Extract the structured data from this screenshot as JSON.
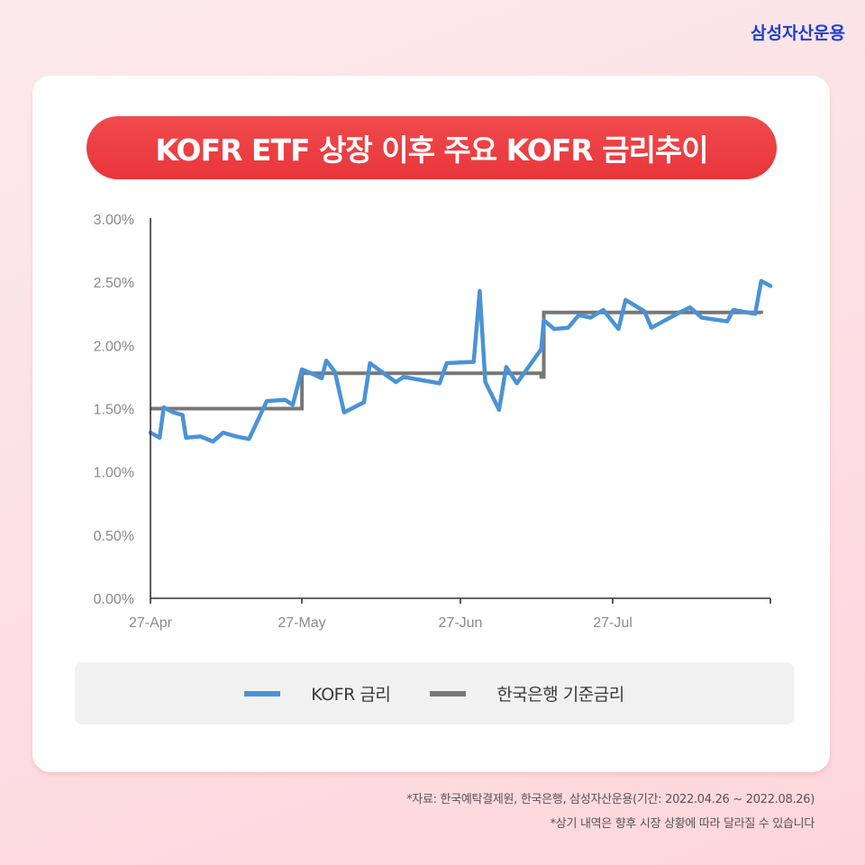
{
  "brand": {
    "name": "삼성자산운용",
    "color": "#1a3fd6"
  },
  "title": "KOFR ETF 상장 이후 주요 KOFR 금리추이",
  "colors": {
    "title_bg": "#ec3f43",
    "kofr_line": "#4a93d6",
    "bok_line": "#777777",
    "axis": "#333333"
  },
  "legend": [
    {
      "label": "KOFR 금리",
      "color": "#4a93d6"
    },
    {
      "label": "한국은행 기준금리",
      "color": "#777777"
    }
  ],
  "footnotes": [
    "*자료: 한국예탁결제원, 한국은행, 삼성자산운용(기간: 2022.04.26 ~ 2022.08.26)",
    "*상기 내역은 향후 시장 상황에 따라 달라질 수 있습니다"
  ],
  "chart_data": {
    "type": "line",
    "title": "KOFR ETF 상장 이후 주요 KOFR 금리추이",
    "xlabel": "",
    "ylabel": "",
    "ylim": [
      0,
      3.0
    ],
    "yticks": [
      "0.00%",
      "0.50%",
      "1.00%",
      "1.50%",
      "2.00%",
      "2.50%",
      "3.00%"
    ],
    "xticks": [
      "27-Apr",
      "27-May",
      "27-Jun",
      "27-Jul"
    ],
    "grid": false,
    "legend_position": "bottom",
    "x_range_days": [
      0,
      122
    ],
    "series": [
      {
        "name": "KOFR 금리",
        "color": "#4a93d6",
        "points": [
          [
            0.0,
            1.31
          ],
          [
            1.8,
            1.27
          ],
          [
            2.6,
            1.51
          ],
          [
            4.5,
            1.47
          ],
          [
            6.3,
            1.45
          ],
          [
            7.0,
            1.27
          ],
          [
            9.8,
            1.28
          ],
          [
            12.3,
            1.24
          ],
          [
            14.3,
            1.31
          ],
          [
            16.9,
            1.28
          ],
          [
            19.4,
            1.26
          ],
          [
            22.9,
            1.56
          ],
          [
            26.5,
            1.57
          ],
          [
            28.0,
            1.53
          ],
          [
            29.8,
            1.81
          ],
          [
            31.6,
            1.78
          ],
          [
            33.7,
            1.74
          ],
          [
            34.6,
            1.88
          ],
          [
            36.3,
            1.79
          ],
          [
            38.1,
            1.47
          ],
          [
            42.0,
            1.55
          ],
          [
            43.2,
            1.86
          ],
          [
            46.2,
            1.77
          ],
          [
            48.3,
            1.71
          ],
          [
            49.8,
            1.75
          ],
          [
            56.9,
            1.7
          ],
          [
            58.3,
            1.86
          ],
          [
            63.6,
            1.87
          ],
          [
            64.8,
            2.43
          ],
          [
            65.9,
            1.71
          ],
          [
            68.6,
            1.49
          ],
          [
            70.0,
            1.83
          ],
          [
            72.1,
            1.7
          ],
          [
            76.9,
            1.97
          ],
          [
            77.4,
            2.2
          ],
          [
            79.4,
            2.13
          ],
          [
            82.2,
            2.14
          ],
          [
            84.3,
            2.24
          ],
          [
            86.6,
            2.22
          ],
          [
            89.1,
            2.28
          ],
          [
            92.1,
            2.13
          ],
          [
            93.5,
            2.36
          ],
          [
            97.2,
            2.27
          ],
          [
            98.6,
            2.14
          ],
          [
            104.6,
            2.27
          ],
          [
            106.2,
            2.3
          ],
          [
            108.5,
            2.22
          ],
          [
            113.5,
            2.19
          ],
          [
            114.7,
            2.28
          ],
          [
            119.0,
            2.25
          ],
          [
            120.2,
            2.51
          ],
          [
            122.0,
            2.47
          ]
        ]
      },
      {
        "name": "한국은행 기준금리",
        "color": "#777777",
        "points": [
          [
            0.0,
            1.5
          ],
          [
            29.0,
            1.5
          ],
          [
            29.8,
            1.78
          ],
          [
            76.9,
            1.75
          ],
          [
            77.4,
            2.26
          ],
          [
            120.2,
            2.25
          ]
        ]
      }
    ]
  }
}
